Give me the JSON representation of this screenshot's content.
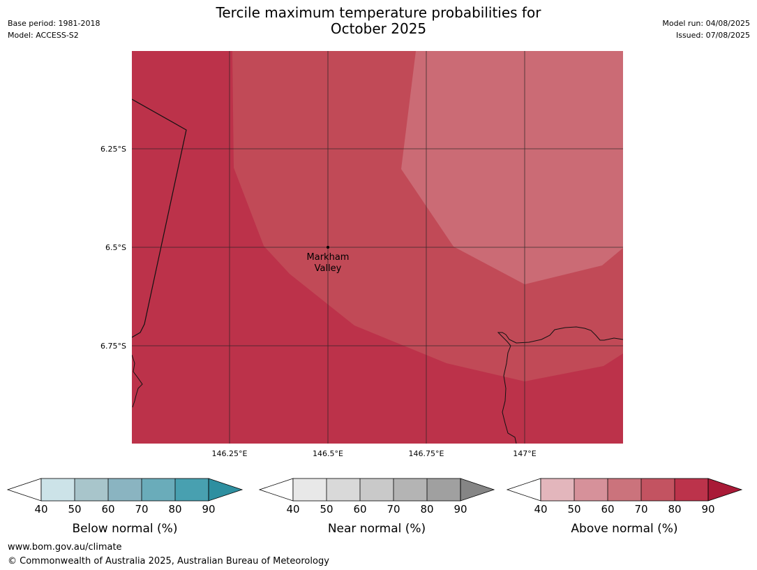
{
  "header": {
    "title_line1": "Tercile maximum temperature probabilities for",
    "title_line2": "October 2025",
    "base_period": "Base period: 1981-2018",
    "model": "Model: ACCESS-S2",
    "model_run": "Model run: 04/08/2025",
    "issued": "Issued: 07/08/2025"
  },
  "map": {
    "lon_labels": [
      "146.25°E",
      "146.5°E",
      "146.75°E",
      "147°E"
    ],
    "lat_labels": [
      "6.25°S",
      "6.5°S",
      "6.75°S"
    ],
    "place_label_line1": "Markham",
    "place_label_line2": "Valley",
    "region_colors": {
      "above_70_80": "#bc324a",
      "above_60_70": "#c14a57",
      "above_50_60": "#cb6b75"
    }
  },
  "colorbars": [
    {
      "title": "Below normal (%)",
      "ticks": [
        "40",
        "50",
        "60",
        "70",
        "80",
        "90"
      ],
      "colors": [
        "#cce3e8",
        "#a8c5cb",
        "#8ab4c1",
        "#6aacba",
        "#48a0b0"
      ],
      "extend_color": "#2e8fa0"
    },
    {
      "title": "Near normal (%)",
      "ticks": [
        "40",
        "50",
        "60",
        "70",
        "80",
        "90"
      ],
      "colors": [
        "#e8e8e8",
        "#d9d9d9",
        "#c9c9c9",
        "#b4b4b4",
        "#a0a0a0"
      ],
      "extend_color": "#858585"
    },
    {
      "title": "Above normal (%)",
      "ticks": [
        "40",
        "50",
        "60",
        "70",
        "80",
        "90"
      ],
      "colors": [
        "#e3b6bc",
        "#d6919a",
        "#cb737c",
        "#c35361",
        "#bc334b"
      ],
      "extend_color": "#a91a37"
    }
  ],
  "footer": {
    "url": "www.bom.gov.au/climate",
    "copyright": "© Commonwealth of Australia 2025, Australian Bureau of Meteorology"
  }
}
